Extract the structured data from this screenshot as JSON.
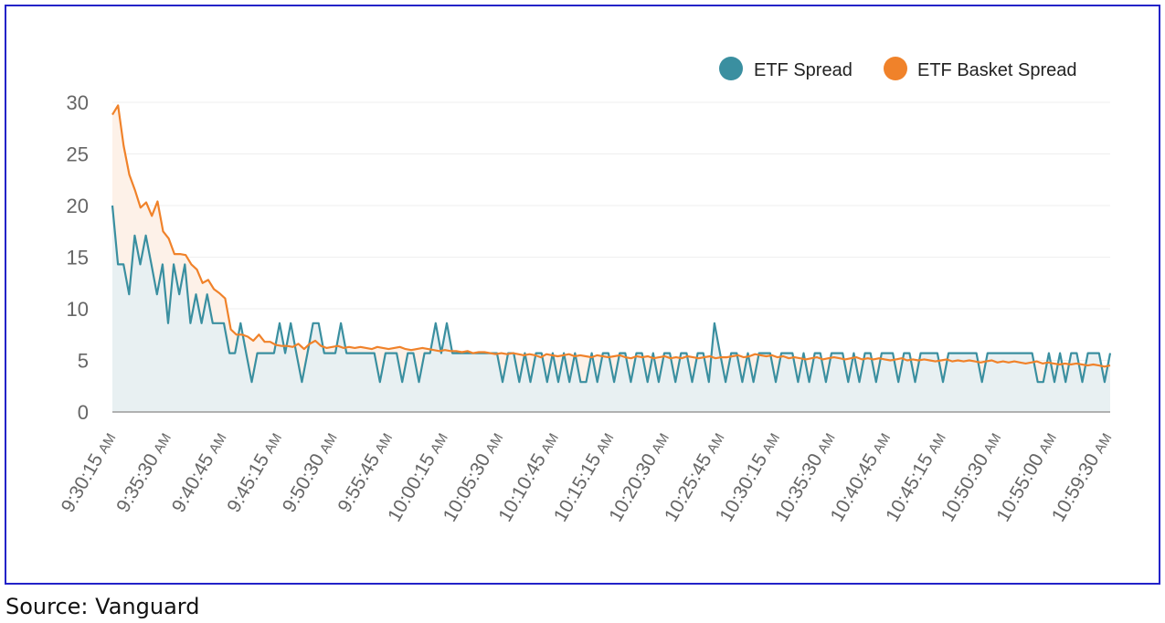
{
  "source": "Source: Vanguard",
  "colors": {
    "etf": "#3a8fa0",
    "basket": "#f0822a",
    "etf_fill": "#e8f0f2",
    "basket_fill": "#fdf1e8",
    "border": "#2323c8"
  },
  "chart_data": {
    "type": "line",
    "title": "",
    "xlabel": "",
    "ylabel": "",
    "ylim": [
      0,
      30
    ],
    "yticks": [
      0,
      5,
      10,
      15,
      20,
      25,
      30
    ],
    "grid": true,
    "legend_position": "top-right",
    "x_tick_labels": [
      {
        "time": "9:30:15",
        "suffix": "AM"
      },
      {
        "time": "9:35:30",
        "suffix": "AM"
      },
      {
        "time": "9:40:45",
        "suffix": "AM"
      },
      {
        "time": "9:45:15",
        "suffix": "AM"
      },
      {
        "time": "9:50:30",
        "suffix": "AM"
      },
      {
        "time": "9:55:45",
        "suffix": "AM"
      },
      {
        "time": "10:00:15",
        "suffix": "AM"
      },
      {
        "time": "10:05:30",
        "suffix": "AM"
      },
      {
        "time": "10:10:45",
        "suffix": "AM"
      },
      {
        "time": "10:15:15",
        "suffix": "AM"
      },
      {
        "time": "10:20:30",
        "suffix": "AM"
      },
      {
        "time": "10:25:45",
        "suffix": "AM"
      },
      {
        "time": "10:30:15",
        "suffix": "AM"
      },
      {
        "time": "10:35:30",
        "suffix": "AM"
      },
      {
        "time": "10:40:45",
        "suffix": "AM"
      },
      {
        "time": "10:45:15",
        "suffix": "AM"
      },
      {
        "time": "10:50:30",
        "suffix": "AM"
      },
      {
        "time": "10:55:00",
        "suffix": "AM"
      },
      {
        "time": "10:59:30",
        "suffix": "AM"
      }
    ],
    "series": [
      {
        "name": "ETF Spread",
        "values": [
          20,
          14.3,
          14.3,
          11.4,
          17.1,
          14.3,
          17.1,
          14.3,
          11.4,
          14.3,
          8.6,
          14.3,
          11.4,
          14.3,
          8.6,
          11.4,
          8.6,
          11.4,
          8.6,
          8.6,
          8.6,
          5.7,
          5.7,
          8.6,
          5.7,
          2.9,
          5.7,
          5.7,
          5.7,
          5.7,
          8.6,
          5.7,
          8.6,
          5.7,
          2.9,
          5.7,
          8.6,
          8.6,
          5.7,
          5.7,
          5.7,
          8.6,
          5.7,
          5.7,
          5.7,
          5.7,
          5.7,
          5.7,
          2.9,
          5.7,
          5.7,
          5.7,
          2.9,
          5.7,
          5.7,
          2.9,
          5.7,
          5.7,
          8.6,
          5.7,
          8.6,
          5.7,
          5.7,
          5.7,
          5.7,
          5.7,
          5.7,
          5.7,
          5.7,
          5.7,
          2.9,
          5.7,
          5.7,
          2.9,
          5.7,
          2.9,
          5.7,
          5.7,
          2.9,
          5.7,
          2.9,
          5.7,
          2.9,
          5.7,
          2.9,
          2.9,
          5.7,
          2.9,
          5.7,
          5.7,
          2.9,
          5.7,
          5.7,
          2.9,
          5.7,
          5.7,
          2.9,
          5.7,
          2.9,
          5.7,
          5.7,
          2.9,
          5.7,
          5.7,
          2.9,
          5.7,
          5.7,
          2.9,
          8.6,
          5.7,
          2.9,
          5.7,
          5.7,
          2.9,
          5.7,
          2.9,
          5.7,
          5.7,
          5.7,
          2.9,
          5.7,
          5.7,
          5.7,
          2.9,
          5.7,
          2.9,
          5.7,
          5.7,
          2.9,
          5.7,
          5.7,
          5.7,
          2.9,
          5.7,
          2.9,
          5.7,
          5.7,
          2.9,
          5.7,
          5.7,
          5.7,
          2.9,
          5.7,
          5.7,
          2.9,
          5.7,
          5.7,
          5.7,
          5.7,
          2.9,
          5.7,
          5.7,
          5.7,
          5.7,
          5.7,
          5.7,
          2.9,
          5.7,
          5.7,
          5.7,
          5.7,
          5.7,
          5.7,
          5.7,
          5.7,
          5.7,
          2.9,
          2.9,
          5.7,
          2.9,
          5.7,
          2.9,
          5.7,
          5.7,
          2.9,
          5.7,
          5.7,
          5.7,
          2.9,
          5.7
        ]
      },
      {
        "name": "ETF Basket Spread",
        "values": [
          28.8,
          29.7,
          25.8,
          23,
          21.5,
          19.8,
          20.3,
          19,
          20.4,
          17.5,
          16.8,
          15.3,
          15.3,
          15.2,
          14.3,
          13.8,
          12.5,
          12.8,
          11.9,
          11.5,
          11,
          8,
          7.5,
          7.5,
          7.3,
          6.9,
          7.5,
          6.8,
          6.8,
          6.5,
          6.4,
          6.4,
          6.3,
          6.6,
          6.1,
          6.6,
          6.9,
          6.4,
          6.2,
          6.3,
          6.4,
          6.2,
          6.3,
          6.2,
          6.3,
          6.2,
          6.1,
          6.3,
          6.2,
          6.1,
          6.2,
          6.3,
          6.1,
          6.0,
          6.1,
          6.2,
          6.1,
          6.0,
          5.9,
          6.0,
          5.9,
          5.9,
          5.8,
          5.9,
          5.7,
          5.8,
          5.8,
          5.7,
          5.6,
          5.7,
          5.6,
          5.7,
          5.6,
          5.5,
          5.6,
          5.5,
          5.3,
          5.6,
          5.5,
          5.4,
          5.5,
          5.6,
          5.4,
          5.5,
          5.4,
          5.3,
          5.5,
          5.4,
          5.3,
          5.4,
          5.5,
          5.3,
          5.2,
          5.4,
          5.3,
          5.4,
          5.2,
          5.3,
          5.4,
          5.2,
          5.3,
          5.2,
          5.4,
          5.3,
          5.2,
          5.3,
          5.4,
          5.2,
          5.3,
          5.3,
          5.4,
          5.5,
          5.3,
          5.4,
          5.6,
          5.5,
          5.4,
          5.5,
          5.3,
          5.4,
          5.2,
          5.3,
          5.2,
          5.1,
          5.2,
          5.3,
          5.1,
          5.2,
          5.3,
          5.2,
          5.1,
          5.2,
          5.3,
          5.1,
          5.2,
          5.1,
          5.2,
          5.1,
          5.0,
          5.1,
          5.2,
          5.0,
          5.1,
          5.0,
          5.1,
          5.0,
          4.9,
          5.0,
          5.1,
          4.9,
          5.0,
          4.9,
          5.0,
          4.9,
          4.8,
          4.9,
          5.0,
          4.8,
          4.9,
          4.8,
          4.9,
          4.8,
          4.7,
          4.8,
          4.9,
          4.7,
          4.8,
          4.7,
          4.6,
          4.7,
          4.6,
          4.7,
          4.6,
          4.5,
          4.6,
          4.5,
          4.4,
          4.5
        ]
      }
    ]
  }
}
